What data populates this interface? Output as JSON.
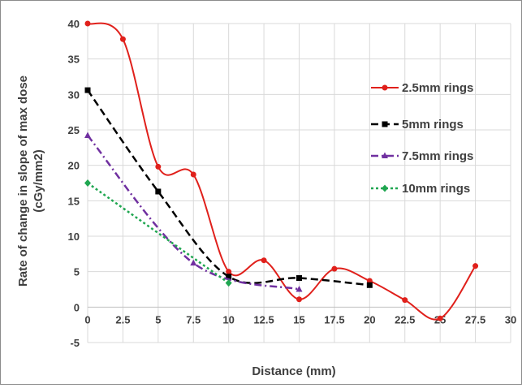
{
  "chart_data": {
    "type": "line",
    "title": "",
    "xlabel": "Distance (mm)",
    "ylabel_line1": "Rate of change  in slope of max dose",
    "ylabel_line2": "(cGy/mm2)",
    "xlim": [
      0,
      30
    ],
    "ylim": [
      -5,
      40
    ],
    "x_ticks": [
      0,
      2.5,
      5,
      7.5,
      10,
      12.5,
      15,
      17.5,
      20,
      22.5,
      25,
      27.5,
      30
    ],
    "y_ticks": [
      -5,
      0,
      5,
      10,
      15,
      20,
      25,
      30,
      35,
      40
    ],
    "grid": true,
    "legend_position": "right",
    "series": [
      {
        "name": "2.5mm rings",
        "color": "#e0201b",
        "marker": "circle",
        "dash": "solid",
        "x": [
          0,
          2.5,
          5,
          7.5,
          10,
          12.5,
          15,
          17.5,
          20,
          22.5,
          25,
          27.5
        ],
        "y": [
          40,
          37.8,
          19.8,
          18.7,
          5,
          6.6,
          1.1,
          5.4,
          3.7,
          1,
          -1.6,
          5.8
        ]
      },
      {
        "name": "5mm rings",
        "color": "#000000",
        "marker": "square",
        "dash": "dash",
        "x": [
          0,
          5,
          10,
          15,
          20
        ],
        "y": [
          30.6,
          16.3,
          4.3,
          4.1,
          3.1
        ]
      },
      {
        "name": "7.5mm rings",
        "color": "#7030a0",
        "marker": "triangle",
        "dash": "dashdot",
        "x": [
          0,
          7.5,
          15
        ],
        "y": [
          24.2,
          6.2,
          2.5
        ]
      },
      {
        "name": "10mm rings",
        "color": "#1fa650",
        "marker": "diamond",
        "dash": "dot",
        "x": [
          0,
          10
        ],
        "y": [
          17.5,
          3.4
        ]
      }
    ]
  }
}
